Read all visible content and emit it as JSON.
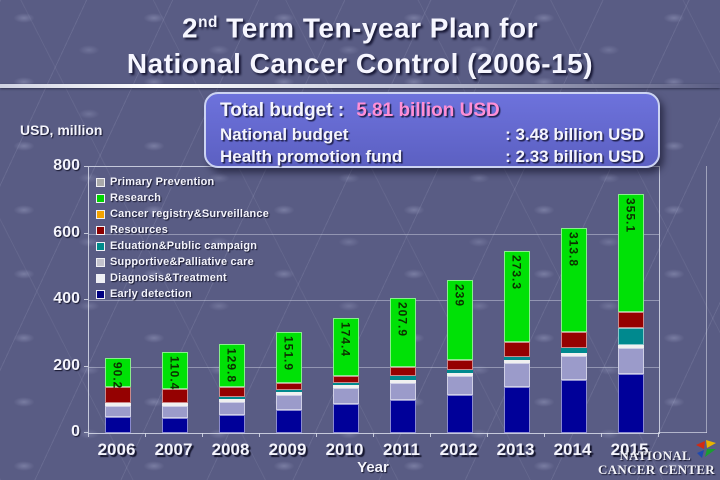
{
  "title": {
    "num": "2",
    "sup": "nd",
    "line1_rest": " Term Ten-year Plan for",
    "line2": "National Cancer Control (2006-15)"
  },
  "budget_box": {
    "total_label": "Total budget :",
    "total_value": "5.81 billion USD",
    "accent_color": "#ff8fd6",
    "rows": [
      {
        "label": "National budget",
        "value": ": 3.48 billion USD"
      },
      {
        "label": "Health promotion fund",
        "value": ": 2.33 billion USD"
      }
    ]
  },
  "chart_data": {
    "type": "bar",
    "stacked": true,
    "unit_label": "USD, million",
    "xlabel": "Year",
    "ylim": [
      0,
      800
    ],
    "yticks": [
      0,
      200,
      400,
      600,
      800
    ],
    "grid": true,
    "legend_position": "top-left-inside",
    "categories": [
      "2006",
      "2007",
      "2008",
      "2009",
      "2010",
      "2011",
      "2012",
      "2013",
      "2014",
      "2015"
    ],
    "series": [
      {
        "name": "Early detection",
        "color": "#000099",
        "values": [
          48,
          46,
          55,
          70,
          86,
          100,
          113,
          137,
          158,
          176
        ]
      },
      {
        "name": "Diagnosis&Treatment",
        "color": "#9b9bca",
        "values": [
          32,
          36,
          38,
          44,
          49,
          51,
          58,
          73,
          74,
          80
        ]
      },
      {
        "name": "Supportive&Palliative care",
        "color": "#f0f0f0",
        "values": [
          9,
          9,
          9,
          9,
          9,
          9,
          9,
          9,
          9,
          9
        ]
      },
      {
        "name": "Eduation&Public campaign",
        "color": "#00898e",
        "values": [
          0,
          0,
          5,
          5,
          6,
          11,
          9,
          9,
          14,
          52
        ]
      },
      {
        "name": "Resources",
        "color": "#950101",
        "values": [
          48,
          42,
          31,
          23,
          23,
          28,
          32,
          46,
          48,
          48
        ]
      },
      {
        "name": "Cancer registry&Surveillance",
        "color": "#f5a300",
        "values": [
          0,
          0,
          0,
          0,
          0,
          0,
          0,
          0,
          0,
          0
        ]
      },
      {
        "name": "Research",
        "color": "#00e106",
        "values": [
          90.2,
          110.4,
          129.8,
          151.9,
          174.4,
          207.9,
          239,
          273.3,
          313.8,
          355.1
        ]
      },
      {
        "name": "Primary Prevention",
        "color": "#a9a9a9",
        "values": [
          0,
          0,
          0,
          0,
          0,
          0,
          0,
          0,
          0,
          0
        ]
      }
    ],
    "bar_value_labels": [
      "90.2",
      "110.4",
      "129.8",
      "151.9",
      "174.4",
      "207.9",
      "239",
      "273.3",
      "313.8",
      "355.1"
    ],
    "bar_value_label_series": "Research",
    "legend": [
      {
        "label": "Primary Prevention",
        "color": "#a9a9a9"
      },
      {
        "label": "Research",
        "color": "#00d400"
      },
      {
        "label": "Cancer registry&Surveillance",
        "color": "#f5a300"
      },
      {
        "label": "Resources",
        "color": "#8b0000"
      },
      {
        "label": "Eduation&Public campaign",
        "color": "#008b8b"
      },
      {
        "label": "Supportive&Palliative care",
        "color": "#c2c2cc"
      },
      {
        "label": "Diagnosis&Treatment",
        "color": "#eef0f5"
      },
      {
        "label": "Early detection",
        "color": "#000080"
      }
    ]
  },
  "logo": {
    "line1": "NATIONAL",
    "line2": "CANCER CENTER"
  }
}
